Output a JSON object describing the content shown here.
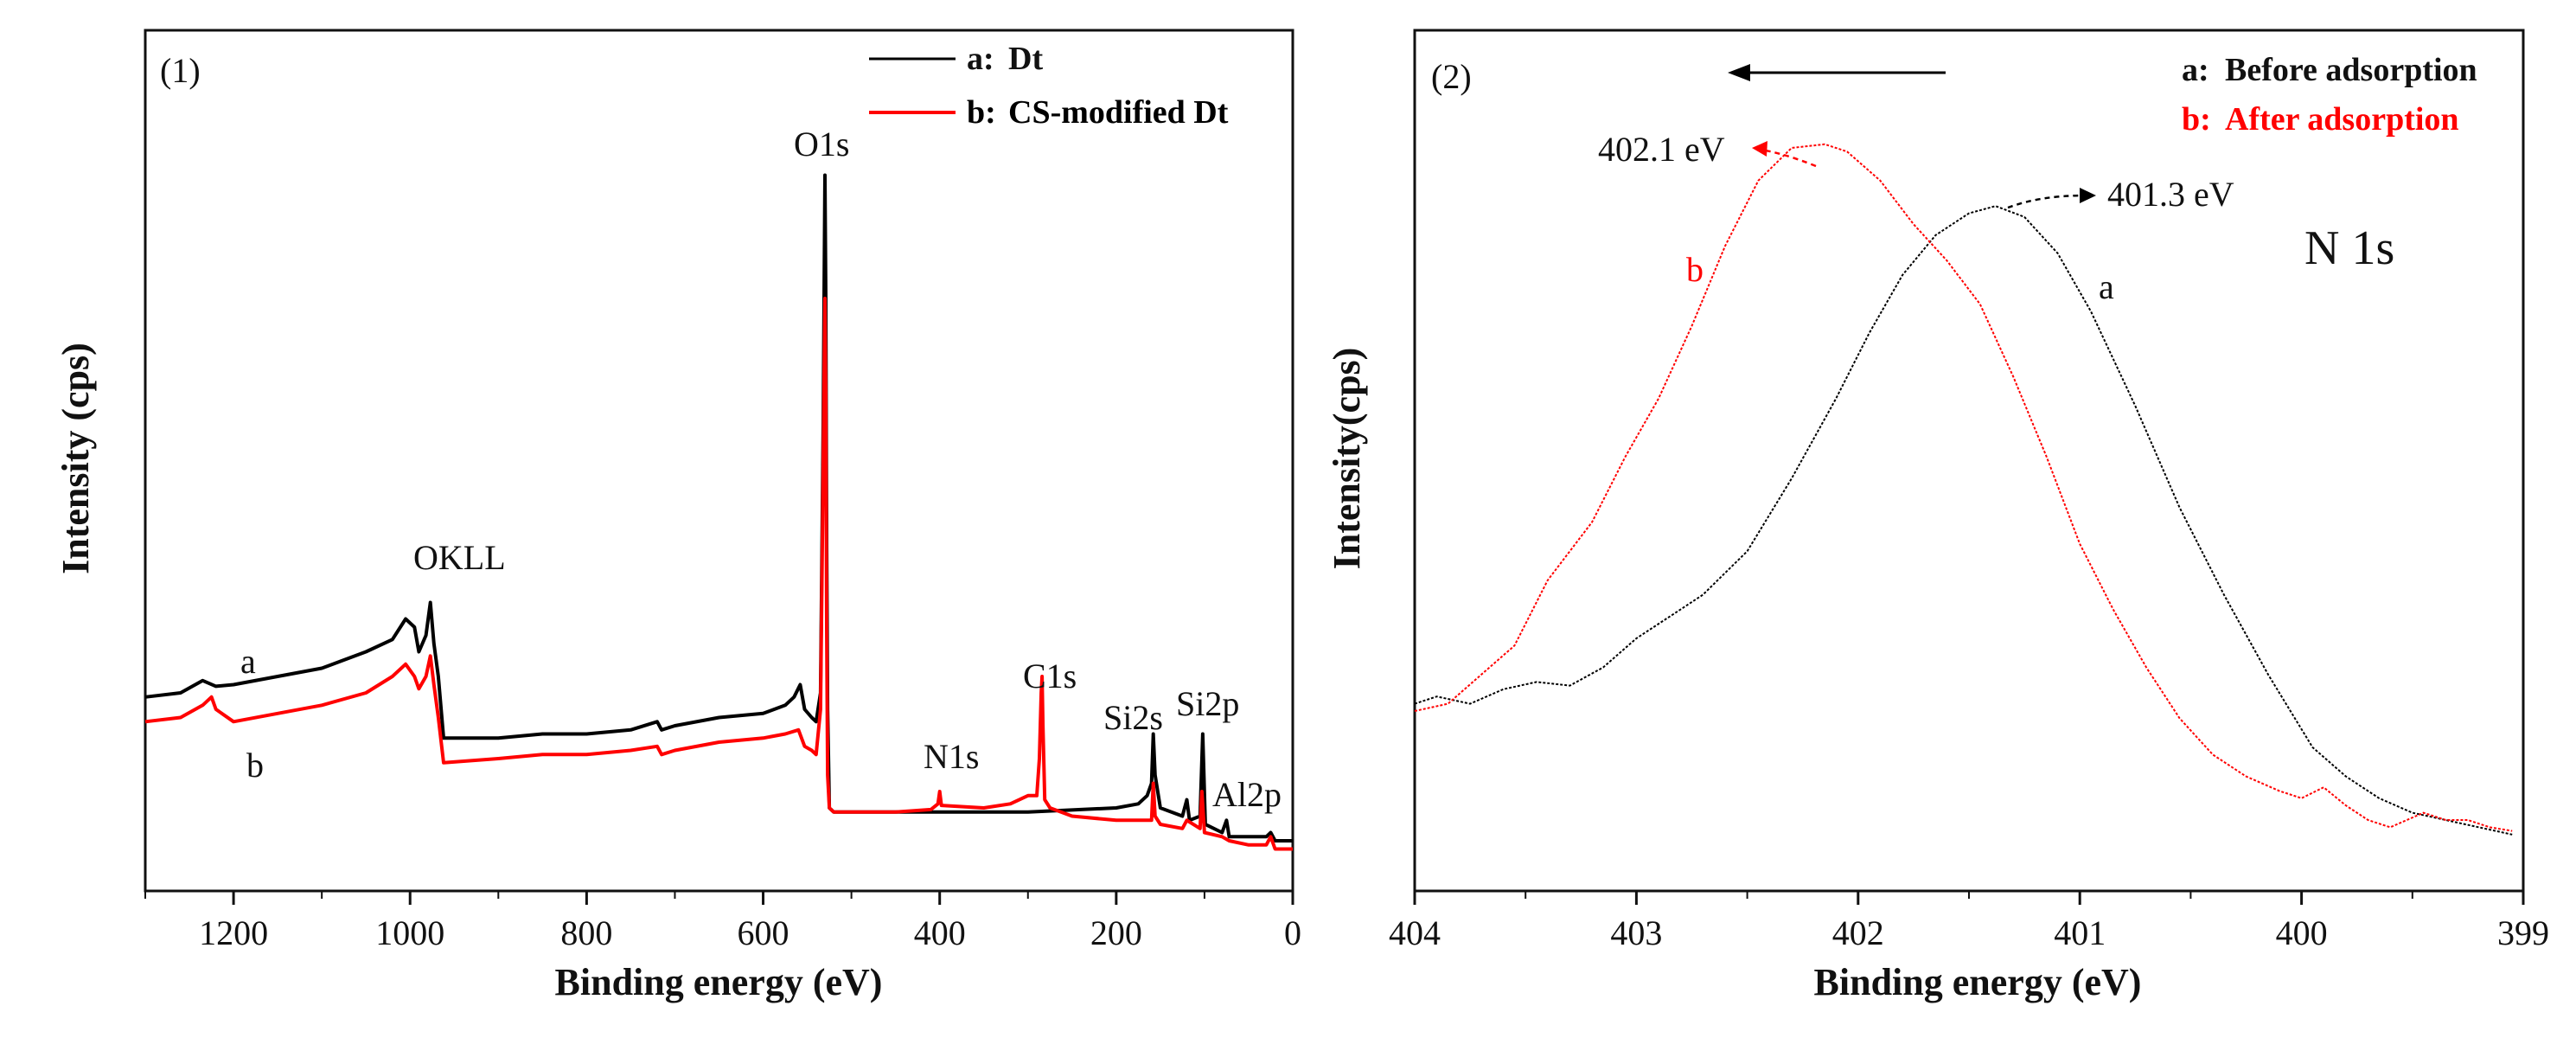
{
  "colors": {
    "series_a": "#000000",
    "series_b": "#ff0000",
    "axis": "#111111",
    "background": "#ffffff"
  },
  "chart_data": [
    {
      "type": "line",
      "panel_label": "(1)",
      "xlabel": "Binding energy (eV)",
      "ylabel": "Intensity (cps)",
      "xlim": [
        1300,
        0
      ],
      "ylim": [
        0,
        100
      ],
      "x_ticks": [
        "1200",
        "1000",
        "800",
        "600",
        "400",
        "200",
        "0"
      ],
      "legend": {
        "position": "top-right",
        "entries": [
          {
            "prefix": "a:",
            "label": "Dt",
            "color": "#000000"
          },
          {
            "prefix": "b:",
            "label": "CS-modified Dt",
            "color": "#ff0000"
          }
        ]
      },
      "annotations": {
        "o1s": "O1s",
        "okll": "OKLL",
        "c1s": "C1s",
        "n1s": "N1s",
        "si2s": "Si2s",
        "si2p": "Si2p",
        "al2p": "Al2p",
        "curve_a": "a",
        "curve_b": "b"
      },
      "series": [
        {
          "name": "a: Dt",
          "color": "#000000",
          "points": [
            [
              1300,
              21.5
            ],
            [
              1260,
              22
            ],
            [
              1235,
              23.5
            ],
            [
              1220,
              22.8
            ],
            [
              1200,
              23
            ],
            [
              1150,
              24
            ],
            [
              1100,
              25
            ],
            [
              1050,
              27
            ],
            [
              1020,
              28.5
            ],
            [
              1005,
              31
            ],
            [
              995,
              30
            ],
            [
              990,
              27
            ],
            [
              982,
              29
            ],
            [
              977,
              33
            ],
            [
              973,
              28
            ],
            [
              968,
              24
            ],
            [
              962,
              16.5
            ],
            [
              900,
              16.5
            ],
            [
              850,
              17
            ],
            [
              800,
              17
            ],
            [
              750,
              17.5
            ],
            [
              720,
              18.5
            ],
            [
              715,
              17.5
            ],
            [
              700,
              18
            ],
            [
              650,
              19
            ],
            [
              600,
              19.5
            ],
            [
              575,
              20.5
            ],
            [
              565,
              21.5
            ],
            [
              558,
              23
            ],
            [
              553,
              20
            ],
            [
              545,
              19
            ],
            [
              540,
              18.5
            ],
            [
              535,
              22
            ],
            [
              532,
              55
            ],
            [
              530,
              85
            ],
            [
              529,
              70
            ],
            [
              528,
              40
            ],
            [
              527,
              20
            ],
            [
              525,
              8
            ],
            [
              520,
              7.5
            ],
            [
              500,
              7.5
            ],
            [
              450,
              7.5
            ],
            [
              400,
              7.5
            ],
            [
              350,
              7.5
            ],
            [
              300,
              7.5
            ],
            [
              200,
              8
            ],
            [
              175,
              8.5
            ],
            [
              165,
              9.5
            ],
            [
              160,
              11
            ],
            [
              158,
              17
            ],
            [
              156,
              12
            ],
            [
              150,
              8
            ],
            [
              125,
              7
            ],
            [
              120,
              9
            ],
            [
              117,
              6.5
            ],
            [
              105,
              7
            ],
            [
              102,
              17
            ],
            [
              99,
              6
            ],
            [
              80,
              5
            ],
            [
              75,
              6.5
            ],
            [
              72,
              4.5
            ],
            [
              50,
              4.5
            ],
            [
              30,
              4.5
            ],
            [
              25,
              5
            ],
            [
              20,
              4
            ],
            [
              10,
              4
            ],
            [
              0,
              4
            ]
          ]
        },
        {
          "name": "b: CS-modified Dt",
          "color": "#ff0000",
          "points": [
            [
              1300,
              18.5
            ],
            [
              1260,
              19
            ],
            [
              1235,
              20.5
            ],
            [
              1225,
              21.5
            ],
            [
              1220,
              20
            ],
            [
              1200,
              18.5
            ],
            [
              1150,
              19.5
            ],
            [
              1100,
              20.5
            ],
            [
              1050,
              22
            ],
            [
              1020,
              24
            ],
            [
              1005,
              25.5
            ],
            [
              995,
              24
            ],
            [
              990,
              22.5
            ],
            [
              982,
              24
            ],
            [
              977,
              26.5
            ],
            [
              973,
              23
            ],
            [
              968,
              19
            ],
            [
              962,
              13.5
            ],
            [
              900,
              14
            ],
            [
              850,
              14.5
            ],
            [
              800,
              14.5
            ],
            [
              750,
              15
            ],
            [
              720,
              15.5
            ],
            [
              715,
              14.5
            ],
            [
              700,
              15
            ],
            [
              650,
              16
            ],
            [
              600,
              16.5
            ],
            [
              575,
              17
            ],
            [
              560,
              17.5
            ],
            [
              553,
              15.5
            ],
            [
              545,
              15
            ],
            [
              540,
              14.5
            ],
            [
              535,
              20
            ],
            [
              532,
              50
            ],
            [
              530,
              70
            ],
            [
              529,
              58
            ],
            [
              528,
              30
            ],
            [
              527,
              12
            ],
            [
              525,
              8
            ],
            [
              520,
              7.5
            ],
            [
              450,
              7.5
            ],
            [
              410,
              7.8
            ],
            [
              402,
              8.5
            ],
            [
              400,
              10
            ],
            [
              398,
              8.3
            ],
            [
              350,
              8
            ],
            [
              320,
              8.5
            ],
            [
              300,
              9.5
            ],
            [
              290,
              9.5
            ],
            [
              287,
              14
            ],
            [
              285,
              22
            ],
            [
              284,
              24
            ],
            [
              283,
              18
            ],
            [
              281,
              9
            ],
            [
              275,
              8
            ],
            [
              250,
              7
            ],
            [
              200,
              6.5
            ],
            [
              160,
              6.5
            ],
            [
              158,
              11
            ],
            [
              156,
              7
            ],
            [
              150,
              6
            ],
            [
              125,
              5.5
            ],
            [
              120,
              6.5
            ],
            [
              105,
              5.5
            ],
            [
              103,
              10
            ],
            [
              100,
              5
            ],
            [
              80,
              4.5
            ],
            [
              72,
              4
            ],
            [
              50,
              3.5
            ],
            [
              30,
              3.5
            ],
            [
              25,
              4.5
            ],
            [
              20,
              3
            ],
            [
              10,
              3
            ],
            [
              0,
              3
            ]
          ]
        }
      ]
    },
    {
      "type": "line",
      "panel_label": "(2)",
      "xlabel": "Binding energy (eV)",
      "ylabel": "Intensity(cps)",
      "xlim": [
        404,
        399
      ],
      "ylim": [
        0,
        100
      ],
      "x_ticks": [
        "404",
        "403",
        "402",
        "401",
        "400",
        "399"
      ],
      "legend": {
        "position": "top-right",
        "entries": [
          {
            "prefix": "a:",
            "label": "Before adsorption",
            "color": "#000000"
          },
          {
            "prefix": "b:",
            "label": "After adsorption",
            "color": "#ff0000"
          }
        ]
      },
      "annotations": {
        "peak_b": "402.1 eV",
        "peak_a": "401.3 eV",
        "region": "N 1s",
        "curve_a": "a",
        "curve_b": "b"
      },
      "series": [
        {
          "name": "a: Before adsorption",
          "color": "#000000",
          "points": [
            [
              404,
              21
            ],
            [
              403.9,
              22
            ],
            [
              403.75,
              21
            ],
            [
              403.6,
              23
            ],
            [
              403.45,
              24
            ],
            [
              403.3,
              23.5
            ],
            [
              403.15,
              26
            ],
            [
              403,
              30
            ],
            [
              402.85,
              33
            ],
            [
              402.7,
              36
            ],
            [
              402.5,
              42
            ],
            [
              402.3,
              52
            ],
            [
              402.1,
              63
            ],
            [
              401.95,
              72
            ],
            [
              401.8,
              80
            ],
            [
              401.65,
              85.5
            ],
            [
              401.5,
              88.5
            ],
            [
              401.38,
              89.5
            ],
            [
              401.25,
              88
            ],
            [
              401.1,
              83
            ],
            [
              400.95,
              75
            ],
            [
              400.75,
              62
            ],
            [
              400.55,
              48
            ],
            [
              400.35,
              36
            ],
            [
              400.15,
              25
            ],
            [
              399.95,
              15
            ],
            [
              399.8,
              11
            ],
            [
              399.65,
              8
            ],
            [
              399.5,
              6
            ],
            [
              399.35,
              5
            ],
            [
              399.2,
              4
            ],
            [
              399.05,
              3
            ]
          ]
        },
        {
          "name": "b: After adsorption",
          "color": "#ff0000",
          "points": [
            [
              404,
              20
            ],
            [
              403.85,
              21
            ],
            [
              403.7,
              25
            ],
            [
              403.55,
              29
            ],
            [
              403.4,
              38
            ],
            [
              403.2,
              46
            ],
            [
              403.05,
              55
            ],
            [
              402.9,
              63
            ],
            [
              402.75,
              73
            ],
            [
              402.6,
              84
            ],
            [
              402.45,
              93
            ],
            [
              402.3,
              97.5
            ],
            [
              402.15,
              98
            ],
            [
              402.05,
              97
            ],
            [
              401.9,
              93
            ],
            [
              401.75,
              87
            ],
            [
              401.6,
              82
            ],
            [
              401.45,
              76
            ],
            [
              401.3,
              66
            ],
            [
              401.15,
              55
            ],
            [
              401,
              43
            ],
            [
              400.85,
              34
            ],
            [
              400.7,
              26
            ],
            [
              400.55,
              19
            ],
            [
              400.4,
              14
            ],
            [
              400.25,
              11
            ],
            [
              400.1,
              9
            ],
            [
              400,
              8
            ],
            [
              399.9,
              9.5
            ],
            [
              399.8,
              7
            ],
            [
              399.7,
              5
            ],
            [
              399.6,
              4
            ],
            [
              399.45,
              6
            ],
            [
              399.35,
              5
            ],
            [
              399.25,
              5
            ],
            [
              399.15,
              4
            ],
            [
              399.05,
              3.5
            ]
          ]
        }
      ]
    }
  ]
}
